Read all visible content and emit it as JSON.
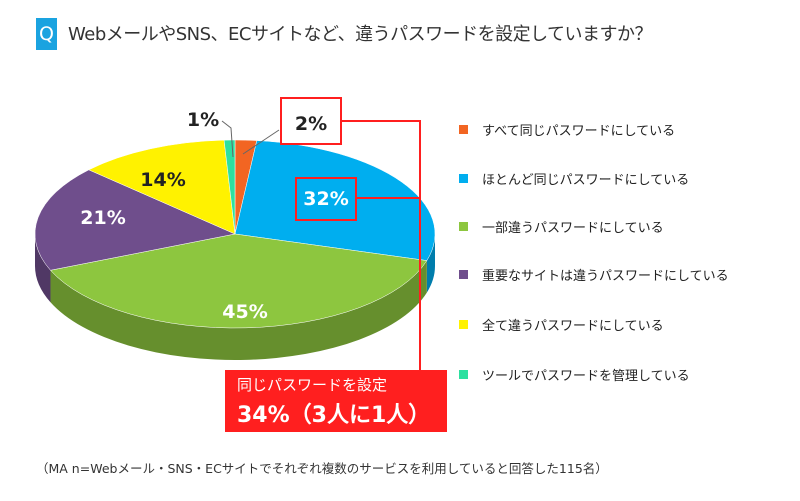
{
  "header": {
    "badge": "Q",
    "title": "WebメールやSNS、ECサイトなど、違うパスワードを設定していますか？"
  },
  "chart_data": {
    "type": "pie",
    "title": "WebメールやSNS、ECサイトなど、違うパスワードを設定していますか？",
    "style": "3d",
    "legend_position": "right",
    "slices": [
      {
        "label": "すべて同じパスワードにしている",
        "value": 2,
        "display": "2%",
        "color": "#f26522"
      },
      {
        "label": "ほとんど同じパスワードにしている",
        "value": 32,
        "display": "32%",
        "color": "#00aeef"
      },
      {
        "label": "一部違うパスワードにしている",
        "value": 45,
        "display": "45%",
        "color": "#8dc63f"
      },
      {
        "label": "重要なサイトは違うパスワードにしている",
        "value": 21,
        "display": "21%",
        "color": "#6f4e8c"
      },
      {
        "label": "全て違うパスワードにしている",
        "value": 14,
        "display": "14%",
        "color": "#fff200"
      },
      {
        "label": "ツールでパスワードを管理している",
        "value": 1,
        "display": "1%",
        "color": "#2de0a0"
      }
    ]
  },
  "callout": {
    "line1": "同じパスワードを設定",
    "line2": "34%（3人に1人）",
    "color": "#ff1f1f"
  },
  "note": "（MA n=Webメール・SNS・ECサイトでそれぞれ複数のサービスを利用していると回答した115名）"
}
